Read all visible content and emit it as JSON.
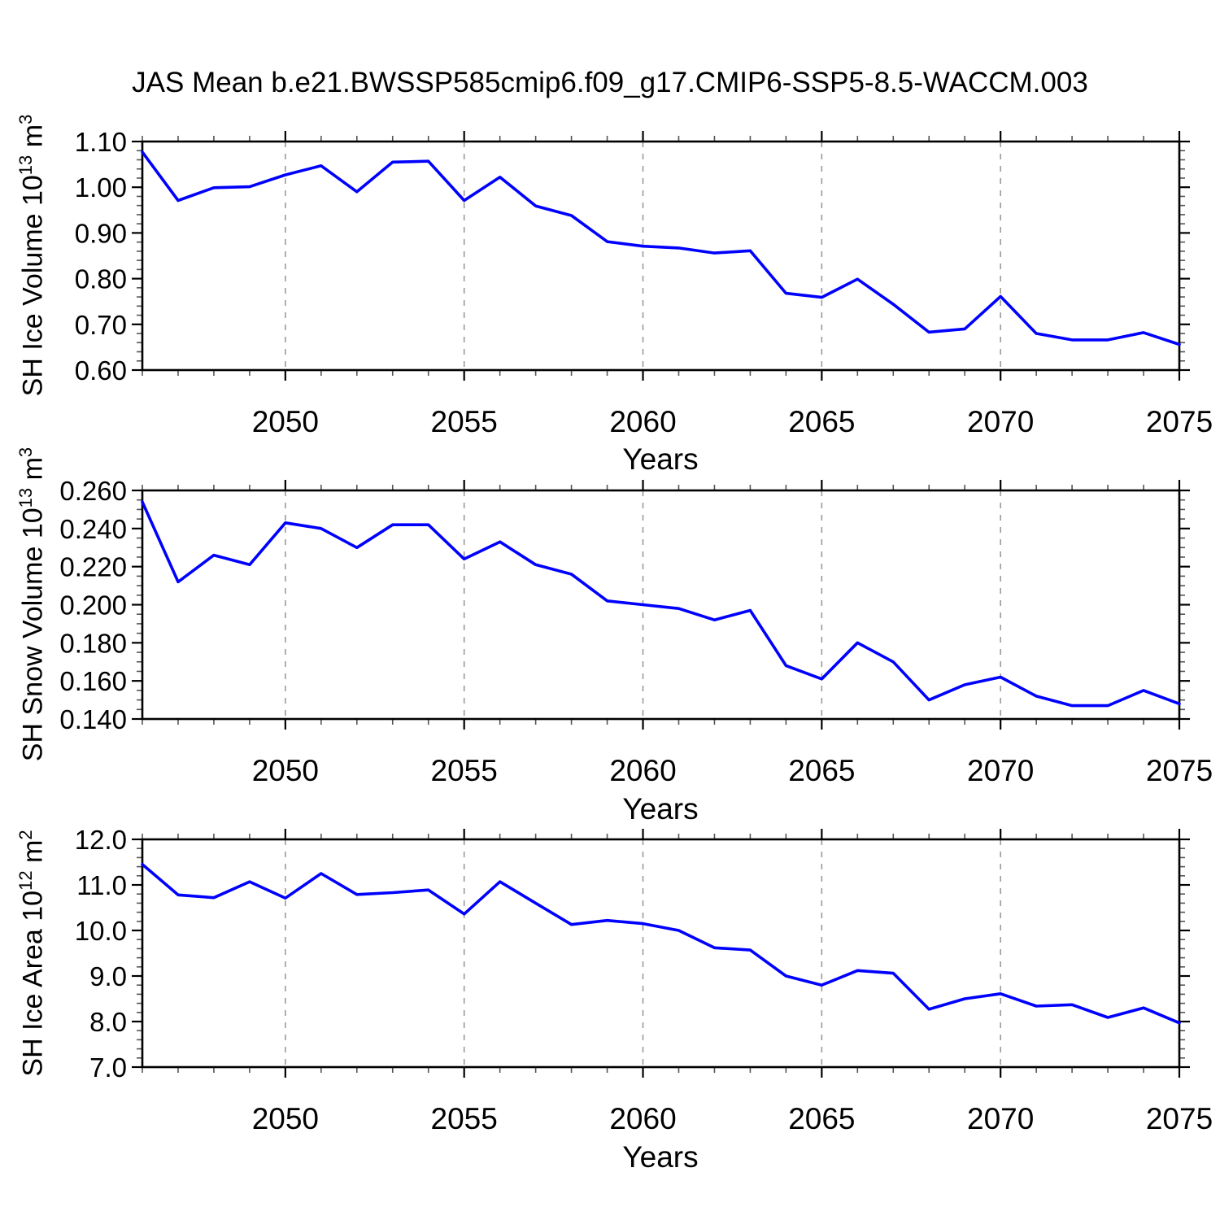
{
  "title": "JAS Mean b.e21.BWSSP585cmip6.f09_g17.CMIP6-SSP5-8.5-WACCM.003",
  "chart_data": {
    "type": "line",
    "legend": "none",
    "grid": "vertical-dashed",
    "line_color": "#0000ff",
    "x_years": [
      2046,
      2047,
      2048,
      2049,
      2050,
      2051,
      2052,
      2053,
      2054,
      2055,
      2056,
      2057,
      2058,
      2059,
      2060,
      2061,
      2062,
      2063,
      2064,
      2065,
      2066,
      2067,
      2068,
      2069,
      2070,
      2071,
      2072,
      2073,
      2074,
      2075
    ],
    "xlim": [
      2046,
      2075
    ],
    "x_major_ticks": [
      2050,
      2055,
      2060,
      2065,
      2070,
      2075
    ],
    "x_tick_labels": [
      "2050",
      "2055",
      "2060",
      "2065",
      "2070",
      "2075"
    ],
    "x_gridlines": [
      2050,
      2055,
      2060,
      2065,
      2070
    ],
    "panels": [
      {
        "id": "sh-ice-volume",
        "ylabel": {
          "text": "SH Ice Volume 10",
          "exp": "13",
          "unit": " m",
          "unit_exp": "3"
        },
        "xlabel": "Years",
        "ylim": [
          0.6,
          1.1
        ],
        "y_minor_step": 0.02,
        "yticks": {
          "labels": [
            "1.10",
            "1.00",
            "0.90",
            "0.80",
            "0.70",
            "0.60"
          ],
          "values": [
            1.1,
            1.0,
            0.9,
            0.8,
            0.7,
            0.6
          ]
        },
        "values": [
          1.077,
          0.971,
          0.999,
          1.001,
          1.027,
          1.047,
          0.99,
          1.055,
          1.057,
          0.971,
          1.022,
          0.959,
          0.938,
          0.881,
          0.871,
          0.867,
          0.856,
          0.861,
          0.768,
          0.759,
          0.799,
          0.744,
          0.683,
          0.69,
          0.761,
          0.68,
          0.666,
          0.666,
          0.682,
          0.656
        ]
      },
      {
        "id": "sh-snow-volume",
        "ylabel": {
          "text": "SH Snow Volume 10",
          "exp": "13",
          "unit": " m",
          "unit_exp": "3"
        },
        "xlabel": "Years",
        "ylim": [
          0.14,
          0.26
        ],
        "y_minor_step": 0.005,
        "yticks": {
          "labels": [
            "0.260",
            "0.240",
            "0.220",
            "0.200",
            "0.180",
            "0.160",
            "0.140"
          ],
          "values": [
            0.26,
            0.24,
            0.22,
            0.2,
            0.18,
            0.16,
            0.14
          ]
        },
        "values": [
          0.254,
          0.212,
          0.226,
          0.221,
          0.243,
          0.24,
          0.23,
          0.242,
          0.242,
          0.224,
          0.233,
          0.221,
          0.216,
          0.202,
          0.2,
          0.198,
          0.192,
          0.197,
          0.168,
          0.161,
          0.18,
          0.17,
          0.15,
          0.158,
          0.162,
          0.152,
          0.147,
          0.147,
          0.155,
          0.148
        ]
      },
      {
        "id": "sh-ice-area",
        "ylabel": {
          "text": "SH Ice Area 10",
          "exp": "12",
          "unit": " m",
          "unit_exp": "2"
        },
        "xlabel": "Years",
        "ylim": [
          7.0,
          12.0
        ],
        "y_minor_step": 0.2,
        "yticks": {
          "labels": [
            "12.0",
            "11.0",
            "10.0",
            "9.0",
            "8.0",
            "7.0"
          ],
          "values": [
            12.0,
            11.0,
            10.0,
            9.0,
            8.0,
            7.0
          ]
        },
        "values": [
          11.45,
          10.78,
          10.72,
          11.07,
          10.71,
          11.25,
          10.79,
          10.83,
          10.89,
          10.36,
          11.07,
          10.6,
          10.13,
          10.22,
          10.15,
          10.0,
          9.62,
          9.57,
          9.0,
          8.8,
          9.12,
          9.06,
          8.27,
          8.5,
          8.61,
          8.34,
          8.37,
          8.09,
          8.3,
          7.97
        ]
      }
    ]
  }
}
